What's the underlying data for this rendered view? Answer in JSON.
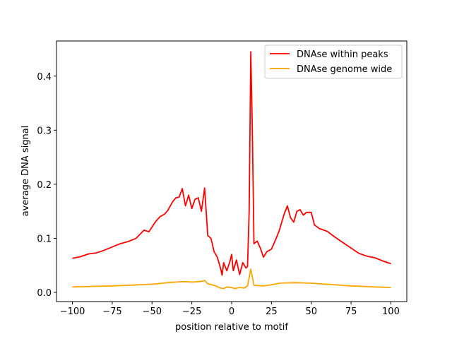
{
  "chart_data": {
    "type": "line",
    "title": "",
    "xlabel": "position relative to motif",
    "ylabel": "average DNA signal",
    "xlim": [
      -110,
      110
    ],
    "ylim": [
      -0.017,
      0.465
    ],
    "xticks": [
      -100,
      -75,
      -50,
      -25,
      0,
      25,
      50,
      75,
      100
    ],
    "xtick_labels": [
      "−100",
      "−75",
      "−50",
      "−25",
      "0",
      "25",
      "50",
      "75",
      "100"
    ],
    "yticks": [
      0.0,
      0.1,
      0.2,
      0.3,
      0.4
    ],
    "ytick_labels": [
      "0.0",
      "0.1",
      "0.2",
      "0.3",
      "0.4"
    ],
    "grid": false,
    "legend_position": "top-right",
    "series": [
      {
        "name": "DNAse within peaks",
        "color": "#ff0000",
        "x": [
          -100,
          -95,
          -90,
          -85,
          -80,
          -75,
          -70,
          -65,
          -60,
          -55,
          -52,
          -48,
          -45,
          -42,
          -40,
          -37,
          -35,
          -33,
          -31,
          -29,
          -27,
          -25,
          -23,
          -21,
          -19,
          -17,
          -15,
          -13,
          -11,
          -9,
          -7,
          -6,
          -5,
          -3,
          -1,
          0,
          1,
          3,
          5,
          7,
          9,
          10,
          11,
          12,
          13,
          14,
          16,
          18,
          20,
          22,
          25,
          28,
          30,
          33,
          35,
          37,
          39,
          41,
          43,
          45,
          47,
          50,
          52,
          55,
          60,
          65,
          70,
          75,
          80,
          85,
          90,
          95,
          100
        ],
        "y": [
          0.063,
          0.066,
          0.071,
          0.073,
          0.078,
          0.084,
          0.09,
          0.094,
          0.1,
          0.115,
          0.112,
          0.13,
          0.14,
          0.145,
          0.152,
          0.168,
          0.175,
          0.176,
          0.192,
          0.16,
          0.18,
          0.155,
          0.172,
          0.175,
          0.15,
          0.193,
          0.105,
          0.1,
          0.075,
          0.065,
          0.045,
          0.032,
          0.055,
          0.04,
          0.058,
          0.07,
          0.04,
          0.06,
          0.033,
          0.055,
          0.045,
          0.048,
          0.15,
          0.445,
          0.3,
          0.09,
          0.095,
          0.082,
          0.065,
          0.075,
          0.08,
          0.1,
          0.115,
          0.145,
          0.16,
          0.138,
          0.13,
          0.15,
          0.153,
          0.143,
          0.148,
          0.148,
          0.125,
          0.118,
          0.113,
          0.102,
          0.092,
          0.082,
          0.072,
          0.067,
          0.064,
          0.058,
          0.053
        ]
      },
      {
        "name": "DNAse genome wide",
        "color": "#ffa500",
        "x": [
          -100,
          -75,
          -50,
          -40,
          -35,
          -30,
          -25,
          -20,
          -17,
          -15,
          -10,
          -7,
          -5,
          -3,
          0,
          2,
          5,
          8,
          10,
          12,
          14,
          20,
          25,
          30,
          40,
          50,
          60,
          75,
          90,
          100
        ],
        "y": [
          0.01,
          0.012,
          0.015,
          0.018,
          0.019,
          0.02,
          0.019,
          0.02,
          0.022,
          0.016,
          0.012,
          0.008,
          0.007,
          0.01,
          0.009,
          0.007,
          0.009,
          0.008,
          0.012,
          0.043,
          0.013,
          0.012,
          0.014,
          0.017,
          0.018,
          0.017,
          0.015,
          0.012,
          0.01,
          0.009
        ]
      }
    ]
  }
}
